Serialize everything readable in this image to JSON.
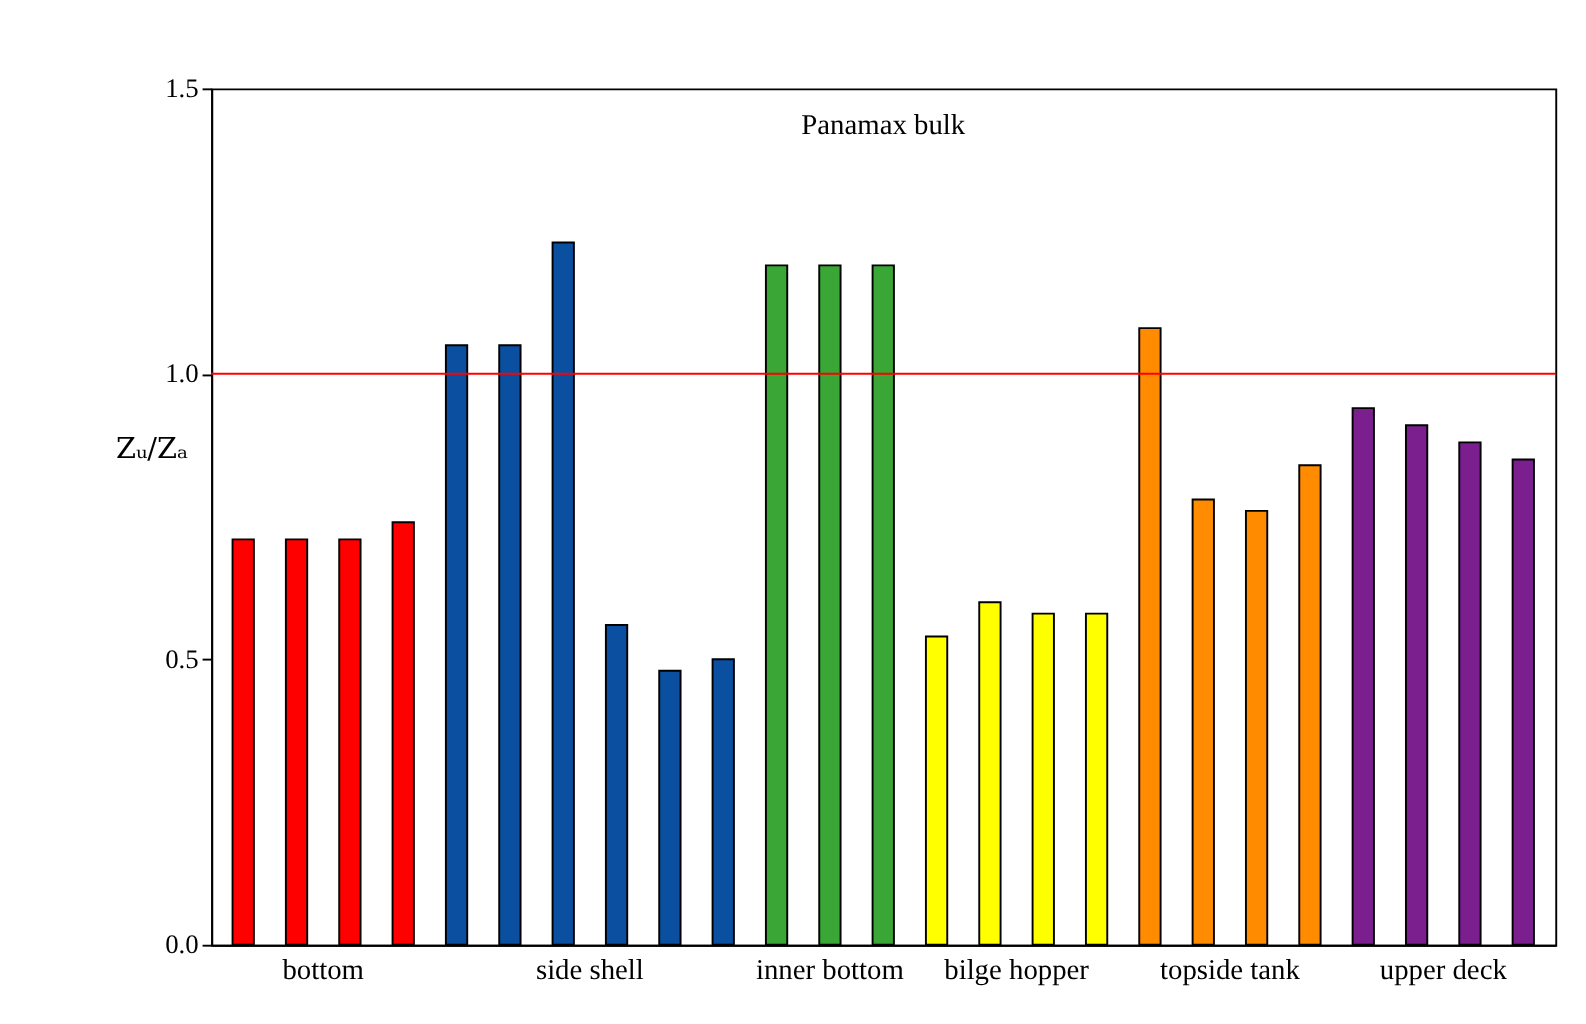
{
  "chart_data": {
    "type": "bar",
    "title": "Panamax bulk",
    "ylabel": "Zᵤ/Zₐ",
    "categories": [
      null,
      null,
      null,
      null,
      null,
      null,
      null,
      null,
      null,
      null,
      null,
      null,
      null,
      null,
      null,
      null,
      null,
      null,
      null,
      null,
      null,
      null,
      null,
      null,
      null
    ],
    "series": [
      {
        "name": "bottom",
        "color": "#ff0000",
        "values": [
          0.71,
          0.71,
          0.71,
          0.74,
          null,
          null,
          null,
          null,
          null,
          null,
          null,
          null,
          null,
          null,
          null,
          null,
          null,
          null,
          null,
          null,
          null,
          null,
          null,
          null,
          null
        ]
      },
      {
        "name": "side shell",
        "color": "#0a4fa0",
        "values": [
          null,
          null,
          null,
          null,
          1.05,
          1.05,
          1.23,
          0.56,
          0.48,
          0.5,
          null,
          null,
          null,
          null,
          null,
          null,
          null,
          null,
          null,
          null,
          null,
          null,
          null,
          null,
          null
        ]
      },
      {
        "name": "inner bottom",
        "color": "#3aa636",
        "values": [
          null,
          null,
          null,
          null,
          null,
          null,
          null,
          null,
          null,
          null,
          1.19,
          1.19,
          1.19,
          null,
          null,
          null,
          null,
          null,
          null,
          null,
          null,
          null,
          null,
          null,
          null
        ]
      },
      {
        "name": "bilge hopper",
        "color": "#ffff00",
        "values": [
          null,
          null,
          null,
          null,
          null,
          null,
          null,
          null,
          null,
          null,
          null,
          null,
          null,
          0.54,
          0.6,
          0.58,
          0.58,
          null,
          null,
          null,
          null,
          null,
          null,
          null,
          null
        ]
      },
      {
        "name": "topside tank",
        "color": "#ff8c00",
        "values": [
          null,
          null,
          null,
          null,
          null,
          null,
          null,
          null,
          null,
          null,
          null,
          null,
          null,
          null,
          null,
          null,
          null,
          1.08,
          0.78,
          0.76,
          0.84,
          null,
          null,
          null,
          null
        ]
      },
      {
        "name": "upper deck",
        "color": "#7b1f8f",
        "values": [
          null,
          null,
          null,
          null,
          null,
          null,
          null,
          null,
          null,
          null,
          null,
          null,
          null,
          null,
          null,
          null,
          null,
          null,
          null,
          null,
          null,
          0.94,
          0.91,
          0.88,
          0.85
        ]
      }
    ],
    "ylim": [
      0,
      1.5
    ],
    "yticks": [
      {
        "value": 0,
        "label": "0.0"
      },
      {
        "value": 0.5,
        "label": "0.5"
      },
      {
        "value": 1,
        "label": "1.0"
      },
      {
        "value": 1.5,
        "label": "1.5"
      }
    ],
    "ref_lines": [
      {
        "axis": "y",
        "value": 1,
        "color": "#ff0000"
      }
    ],
    "grid": false,
    "legend": false
  }
}
